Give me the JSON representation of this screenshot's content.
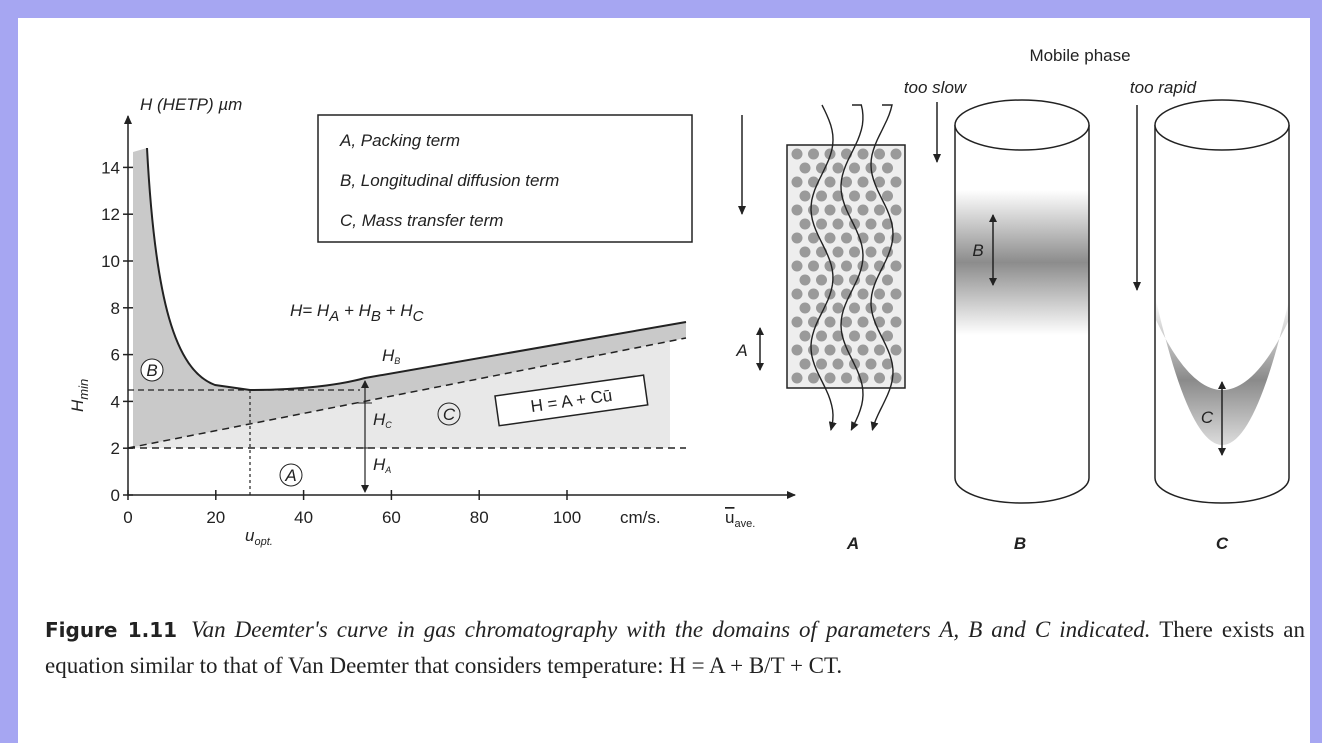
{
  "figure": {
    "plot": {
      "y_label": "H (HETP) µm",
      "x_unit": "cm/s.",
      "x_label": [
        "u",
        "ave."
      ],
      "y_min_label": [
        "H",
        "min"
      ],
      "u_opt_label": [
        "u",
        "opt."
      ],
      "xticks": [
        0,
        20,
        40,
        60,
        80,
        100
      ],
      "yticks": [
        0,
        2,
        4,
        6,
        8,
        10,
        12,
        14
      ],
      "legend": [
        "A, Packing term",
        "B, Longitudinal diffusion term",
        "C, Mass transfer term"
      ],
      "equation": [
        [
          "H= H",
          "A"
        ],
        [
          " + H",
          "B"
        ],
        [
          " + H",
          "C"
        ]
      ],
      "line_equation": "H = A + Cū",
      "regions": [
        "B",
        "C",
        "A"
      ],
      "arrow_labels": [
        [
          "H",
          "B"
        ],
        [
          "H",
          "C"
        ],
        [
          "H",
          "A"
        ]
      ]
    },
    "columns": {
      "header": "Mobile phase",
      "too_slow": "too slow",
      "too_rapid": "too rapid",
      "zone_labels": [
        "A",
        "B",
        "C"
      ],
      "names": [
        "A",
        "B",
        "C"
      ]
    }
  },
  "caption": {
    "label": "Figure 1.11",
    "title": "Van Deemter's curve in gas chromatography with the domains of parameters A, B and C indicated.",
    "text": "There exists an equation similar to that of Van Deemter that considers temperature: H = A + B/T + CT."
  }
}
